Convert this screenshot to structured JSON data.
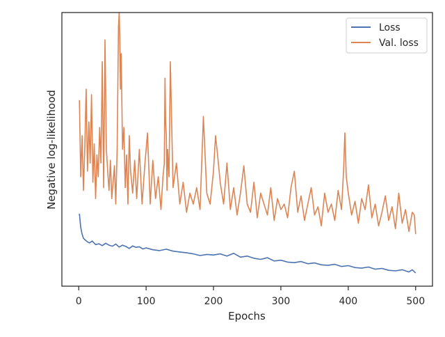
{
  "chart_data": {
    "type": "line",
    "xlabel": "Epochs",
    "ylabel": "Negative log-likelihood",
    "xlim": [
      -25,
      525
    ],
    "ylim": [
      0,
      1
    ],
    "xticks": [
      0,
      100,
      200,
      300,
      400,
      500
    ],
    "yticks_shown": false,
    "grid": false,
    "legend_position": "top-right",
    "series": [
      {
        "name": "Loss",
        "color": "#4c72b0",
        "x": [
          1,
          3,
          5,
          7,
          10,
          13,
          16,
          20,
          25,
          30,
          35,
          40,
          45,
          50,
          55,
          60,
          65,
          70,
          75,
          80,
          85,
          90,
          95,
          100,
          110,
          120,
          130,
          140,
          150,
          160,
          170,
          180,
          190,
          200,
          210,
          220,
          230,
          240,
          250,
          260,
          270,
          280,
          290,
          300,
          310,
          320,
          330,
          340,
          350,
          360,
          370,
          380,
          390,
          400,
          410,
          420,
          430,
          440,
          450,
          460,
          470,
          480,
          490,
          495,
          500
        ],
        "y": [
          0.265,
          0.215,
          0.19,
          0.175,
          0.168,
          0.162,
          0.158,
          0.165,
          0.152,
          0.155,
          0.148,
          0.157,
          0.15,
          0.146,
          0.154,
          0.143,
          0.15,
          0.145,
          0.138,
          0.147,
          0.142,
          0.144,
          0.136,
          0.14,
          0.133,
          0.13,
          0.135,
          0.128,
          0.125,
          0.122,
          0.118,
          0.112,
          0.116,
          0.114,
          0.118,
          0.11,
          0.12,
          0.106,
          0.11,
          0.102,
          0.098,
          0.104,
          0.092,
          0.095,
          0.088,
          0.086,
          0.09,
          0.082,
          0.085,
          0.078,
          0.076,
          0.08,
          0.072,
          0.075,
          0.068,
          0.066,
          0.07,
          0.062,
          0.065,
          0.058,
          0.056,
          0.06,
          0.052,
          0.06,
          0.048
        ]
      },
      {
        "name": "Val. loss",
        "color": "#dd8452",
        "x": [
          1,
          3,
          5,
          7,
          9,
          11,
          13,
          15,
          17,
          19,
          21,
          23,
          25,
          27,
          29,
          31,
          33,
          35,
          37,
          39,
          41,
          43,
          45,
          47,
          49,
          51,
          53,
          55,
          57,
          59,
          60,
          61,
          62,
          63,
          65,
          67,
          69,
          71,
          73,
          75,
          77,
          80,
          83,
          86,
          90,
          94,
          98,
          102,
          106,
          110,
          114,
          118,
          122,
          125,
          127,
          128,
          129,
          130,
          131,
          132,
          134,
          136,
          140,
          145,
          150,
          155,
          160,
          165,
          170,
          175,
          180,
          185,
          190,
          195,
          200,
          203,
          206,
          210,
          215,
          220,
          225,
          230,
          235,
          240,
          245,
          250,
          255,
          260,
          265,
          270,
          275,
          280,
          285,
          290,
          295,
          300,
          305,
          310,
          315,
          320,
          325,
          330,
          335,
          340,
          345,
          350,
          355,
          360,
          365,
          370,
          375,
          380,
          385,
          390,
          393,
          395,
          397,
          400,
          405,
          410,
          415,
          420,
          425,
          430,
          435,
          440,
          445,
          450,
          455,
          460,
          465,
          470,
          475,
          480,
          485,
          490,
          495,
          498,
          500
        ],
        "y": [
          0.68,
          0.4,
          0.55,
          0.35,
          0.5,
          0.72,
          0.42,
          0.6,
          0.45,
          0.7,
          0.38,
          0.52,
          0.32,
          0.48,
          0.4,
          0.58,
          0.45,
          0.82,
          0.36,
          0.9,
          0.5,
          0.42,
          0.35,
          0.46,
          0.32,
          0.38,
          0.44,
          0.3,
          0.5,
          0.95,
          1.0,
          0.9,
          0.72,
          0.85,
          0.5,
          0.58,
          0.36,
          0.48,
          0.3,
          0.55,
          0.42,
          0.34,
          0.46,
          0.32,
          0.5,
          0.3,
          0.44,
          0.56,
          0.3,
          0.46,
          0.32,
          0.4,
          0.28,
          0.4,
          0.45,
          0.76,
          0.6,
          0.55,
          0.35,
          0.5,
          0.4,
          0.82,
          0.36,
          0.45,
          0.3,
          0.38,
          0.27,
          0.34,
          0.3,
          0.36,
          0.28,
          0.62,
          0.34,
          0.3,
          0.42,
          0.55,
          0.48,
          0.38,
          0.3,
          0.45,
          0.28,
          0.36,
          0.26,
          0.34,
          0.44,
          0.3,
          0.27,
          0.38,
          0.25,
          0.34,
          0.3,
          0.26,
          0.36,
          0.24,
          0.32,
          0.28,
          0.3,
          0.25,
          0.36,
          0.42,
          0.27,
          0.33,
          0.24,
          0.3,
          0.36,
          0.26,
          0.29,
          0.22,
          0.34,
          0.27,
          0.3,
          0.24,
          0.35,
          0.28,
          0.42,
          0.56,
          0.4,
          0.34,
          0.26,
          0.31,
          0.23,
          0.32,
          0.28,
          0.37,
          0.25,
          0.3,
          0.22,
          0.27,
          0.33,
          0.24,
          0.29,
          0.21,
          0.34,
          0.23,
          0.28,
          0.2,
          0.27,
          0.26,
          0.19
        ]
      }
    ]
  }
}
